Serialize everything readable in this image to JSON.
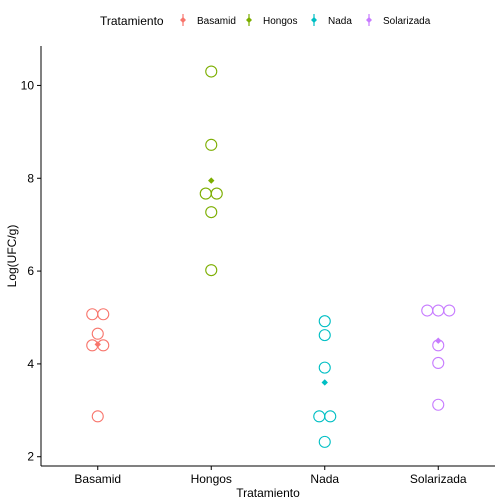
{
  "chart_data": {
    "type": "scatter",
    "xlabel": "Tratamiento",
    "ylabel": "Log(UFC/g)",
    "ylim": [
      1.8,
      10.85
    ],
    "yticks": [
      2,
      4,
      6,
      8,
      10
    ],
    "categories": [
      "Basamid",
      "Hongos",
      "Nada",
      "Solarizada"
    ],
    "legend": {
      "title": "Tratamiento",
      "position": "top",
      "labels": [
        "Basamid",
        "Hongos",
        "Nada",
        "Solarizada"
      ]
    },
    "grid": false,
    "series": [
      {
        "name": "Basamid",
        "color": "#F8766D",
        "points": [
          5.07,
          5.07,
          4.65,
          4.4,
          4.4,
          2.87
        ],
        "mean": 4.42
      },
      {
        "name": "Hongos",
        "color": "#7CAE00",
        "points": [
          10.3,
          8.72,
          7.67,
          7.67,
          7.27,
          6.02
        ],
        "mean": 7.95
      },
      {
        "name": "Nada",
        "color": "#00BFC4",
        "points": [
          4.92,
          4.62,
          3.92,
          2.87,
          2.87,
          2.32
        ],
        "mean": 3.6
      },
      {
        "name": "Solarizada",
        "color": "#C77CFF",
        "points": [
          5.15,
          5.15,
          5.15,
          4.4,
          4.02,
          3.12
        ],
        "mean": 4.5
      }
    ]
  }
}
